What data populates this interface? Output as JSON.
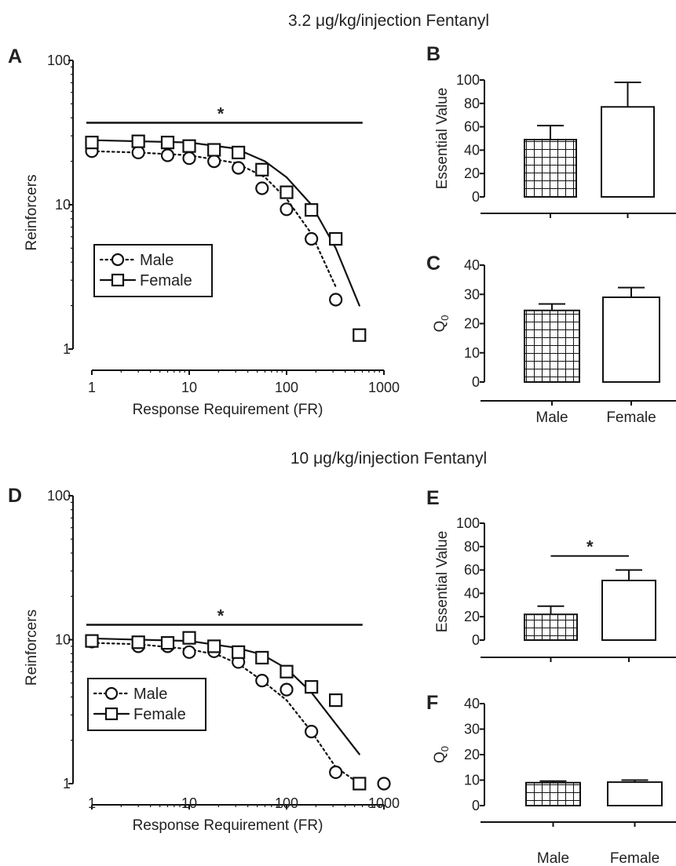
{
  "figure": {
    "top_title": "3.2 μg/kg/injection Fentanyl",
    "bottom_title": "10 μg/kg/injection Fentanyl"
  },
  "chart_data": [
    {
      "panel": "A",
      "type": "line",
      "title": "",
      "xlabel": "Response Requirement  (FR)",
      "ylabel": "Reinforcers",
      "xscale": "log",
      "yscale": "log",
      "xlim": [
        1,
        1000
      ],
      "ylim": [
        1,
        100
      ],
      "x_ticks": [
        "1",
        "10",
        "100",
        "1000"
      ],
      "y_ticks": [
        "1",
        "10",
        "100"
      ],
      "legend": {
        "position": "left",
        "entries": [
          "Male",
          "Female"
        ]
      },
      "significance": {
        "label": "*",
        "y": 37,
        "x_range": [
          1,
          560
        ]
      },
      "series": [
        {
          "name": "Male",
          "marker": "circle",
          "line": "dotted",
          "x": [
            1,
            3,
            6,
            10,
            18,
            32,
            56,
            100,
            180,
            320
          ],
          "y": [
            23.5,
            23,
            22,
            21,
            20,
            18,
            13,
            9.3,
            5.8,
            2.2
          ],
          "fit_x": [
            1,
            3,
            10,
            30,
            60,
            100,
            180,
            320
          ],
          "fit_y": [
            23.5,
            23,
            22,
            19.5,
            15.5,
            11,
            6.3,
            2.7
          ]
        },
        {
          "name": "Female",
          "marker": "square",
          "line": "solid",
          "x": [
            1,
            3,
            6,
            10,
            18,
            32,
            56,
            100,
            180,
            320,
            560
          ],
          "y": [
            27,
            27.5,
            27,
            25.5,
            24,
            23,
            17.5,
            12.2,
            9.2,
            5.8,
            1.25
          ],
          "fit_x": [
            1,
            10,
            30,
            60,
            100,
            180,
            320,
            560
          ],
          "fit_y": [
            28,
            27,
            24.5,
            20,
            15.5,
            10,
            5,
            2
          ]
        }
      ]
    },
    {
      "panel": "B",
      "type": "bar",
      "title": "",
      "xlabel": "",
      "ylabel": "Essential Value",
      "ylim": [
        0,
        100
      ],
      "y_ticks": [
        "0",
        "20",
        "40",
        "60",
        "80",
        "100"
      ],
      "categories": [
        "Male",
        "Female"
      ],
      "values": [
        49,
        77
      ],
      "errors": [
        12,
        21
      ],
      "patterns": [
        "grid",
        "open"
      ]
    },
    {
      "panel": "C",
      "type": "bar",
      "title": "",
      "xlabel": "",
      "ylabel": "Q",
      "ylabel_sub": "0",
      "ylim": [
        0,
        40
      ],
      "y_ticks": [
        "0",
        "10",
        "20",
        "30",
        "40"
      ],
      "categories": [
        "Male",
        "Female"
      ],
      "values": [
        24.5,
        29
      ],
      "errors": [
        2.2,
        3.3
      ],
      "patterns": [
        "grid",
        "open"
      ]
    },
    {
      "panel": "D",
      "type": "line",
      "title": "",
      "xlabel": "Response Requirement  (FR)",
      "ylabel": "Reinforcers",
      "xscale": "log",
      "yscale": "log",
      "xlim": [
        1,
        1000
      ],
      "ylim": [
        1,
        100
      ],
      "x_ticks": [
        "1",
        "10",
        "100",
        "1000"
      ],
      "y_ticks": [
        "1",
        "10",
        "100"
      ],
      "legend": {
        "position": "left",
        "entries": [
          "Male",
          "Female"
        ]
      },
      "significance": {
        "label": "*",
        "y": 12.7,
        "x_range": [
          1,
          560
        ]
      },
      "series": [
        {
          "name": "Male",
          "marker": "circle",
          "line": "dotted",
          "x": [
            1,
            3,
            6,
            10,
            18,
            32,
            56,
            100,
            180,
            320,
            1000
          ],
          "y": [
            9.7,
            9,
            9,
            8.2,
            8.3,
            7,
            5.2,
            4.5,
            2.3,
            1.2,
            1.0
          ],
          "fit_x": [
            1,
            3,
            10,
            20,
            32,
            56,
            100,
            180,
            320,
            560
          ],
          "fit_y": [
            9.5,
            9.3,
            8.6,
            7.8,
            6.8,
            5.2,
            3.8,
            2.3,
            1.3,
            1.0
          ]
        },
        {
          "name": "Female",
          "marker": "square",
          "line": "solid",
          "x": [
            1,
            3,
            6,
            10,
            18,
            32,
            56,
            100,
            180,
            320,
            560
          ],
          "y": [
            9.8,
            9.6,
            9.5,
            10.3,
            9.0,
            8.2,
            7.5,
            6.0,
            4.7,
            3.8,
            1.0
          ],
          "fit_x": [
            1,
            10,
            30,
            56,
            100,
            180,
            320,
            560
          ],
          "fit_y": [
            10.2,
            9.8,
            8.8,
            7.9,
            6.3,
            4.3,
            2.6,
            1.6
          ]
        }
      ]
    },
    {
      "panel": "E",
      "type": "bar",
      "title": "",
      "xlabel": "",
      "ylabel": "Essential Value",
      "ylim": [
        0,
        100
      ],
      "y_ticks": [
        "0",
        "20",
        "40",
        "60",
        "80",
        "100"
      ],
      "categories": [
        "Male",
        "Female"
      ],
      "values": [
        22,
        51
      ],
      "errors": [
        7,
        9
      ],
      "patterns": [
        "grid",
        "open"
      ],
      "significance": {
        "label": "*",
        "y": 72
      }
    },
    {
      "panel": "F",
      "type": "bar",
      "title": "",
      "xlabel": "",
      "ylabel": "Q",
      "ylabel_sub": "0",
      "ylim": [
        0,
        40
      ],
      "y_ticks": [
        "0",
        "10",
        "20",
        "30",
        "40"
      ],
      "categories": [
        "Male",
        "Female"
      ],
      "values": [
        9,
        9.2
      ],
      "errors": [
        0.6,
        0.8
      ],
      "patterns": [
        "grid",
        "open"
      ]
    }
  ]
}
